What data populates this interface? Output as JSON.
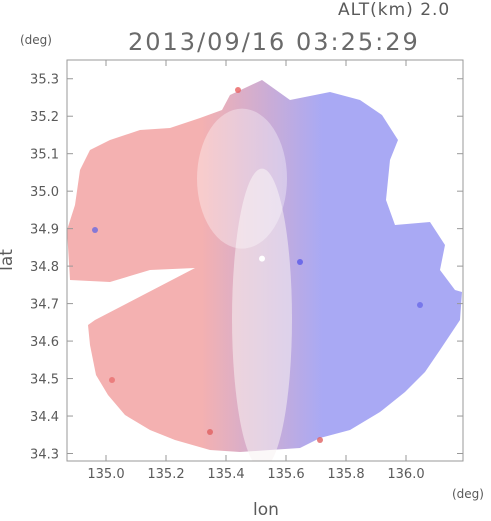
{
  "header": {
    "altitude_label": "ALT(km)  2.0",
    "datetime": "2013/09/16 03:25:29"
  },
  "chart_data": {
    "type": "heatmap",
    "title": "2013/09/16 03:25:29",
    "subtitle": "ALT(km)  2.0",
    "xlabel": "lon",
    "ylabel": "lat",
    "x_unit": "(deg)",
    "y_unit": "(deg)",
    "xlim": [
      134.87,
      136.19
    ],
    "ylim": [
      34.28,
      35.35
    ],
    "x_ticks": [
      "135.0",
      "135.2",
      "135.4",
      "135.6",
      "135.8",
      "136.0"
    ],
    "x_tick_values": [
      135.0,
      135.2,
      135.4,
      135.6,
      135.8,
      136.0
    ],
    "y_ticks": [
      "34.3",
      "34.4",
      "34.5",
      "34.6",
      "34.7",
      "34.8",
      "34.9",
      "35.0",
      "35.1",
      "35.2",
      "35.3"
    ],
    "y_tick_values": [
      34.3,
      34.4,
      34.5,
      34.6,
      34.7,
      34.8,
      34.9,
      35.0,
      35.1,
      35.2,
      35.3
    ],
    "radar_center": {
      "lon": 135.52,
      "lat": 34.82
    },
    "colors": {
      "positive": "#f08080",
      "negative": "#7b7bf0",
      "neutral": "#f7f2f2",
      "frame": "#999999"
    },
    "grid": false,
    "legend": "none"
  }
}
